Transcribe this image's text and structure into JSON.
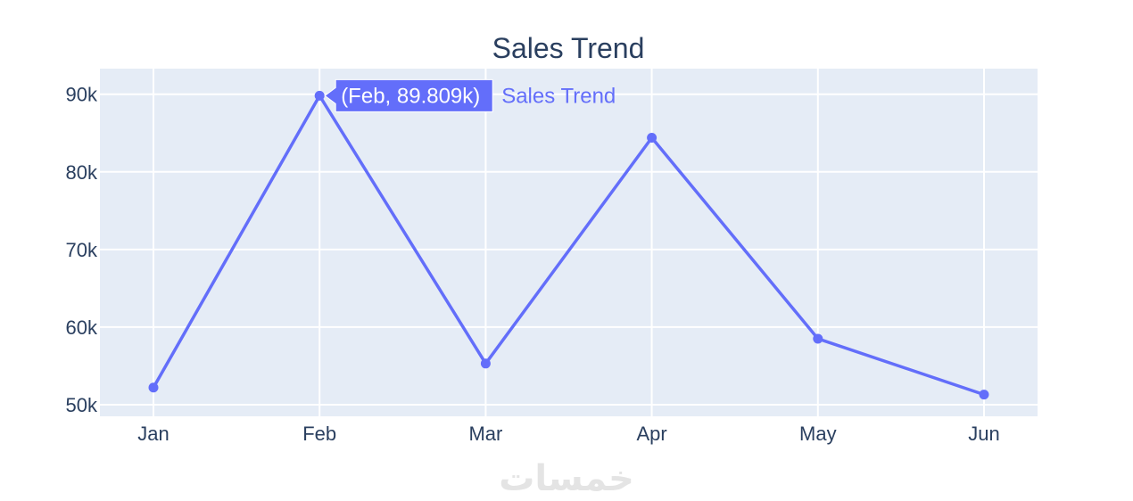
{
  "chart_data": {
    "type": "line",
    "title": "Sales Trend",
    "xlabel": "",
    "ylabel": "",
    "categories": [
      "Jan",
      "Feb",
      "Mar",
      "Apr",
      "May",
      "Jun"
    ],
    "series": [
      {
        "name": "Sales Trend",
        "values": [
          52200,
          89809,
          55300,
          84400,
          58500,
          51300
        ]
      }
    ],
    "y_ticks": [
      {
        "value": 50000,
        "label": "50k"
      },
      {
        "value": 60000,
        "label": "60k"
      },
      {
        "value": 70000,
        "label": "70k"
      },
      {
        "value": 80000,
        "label": "80k"
      },
      {
        "value": 90000,
        "label": "90k"
      }
    ],
    "ylim": [
      48500,
      93300
    ],
    "grid": true,
    "legend": "none",
    "hover": {
      "index": 1,
      "label": "(Feb, 89.809k)",
      "series_name": "Sales Trend"
    }
  },
  "watermark": "خمسات",
  "colors": {
    "line": "#636efa",
    "plot_bg": "#e5ecf6",
    "grid": "#ffffff",
    "text": "#2a3f5f"
  }
}
